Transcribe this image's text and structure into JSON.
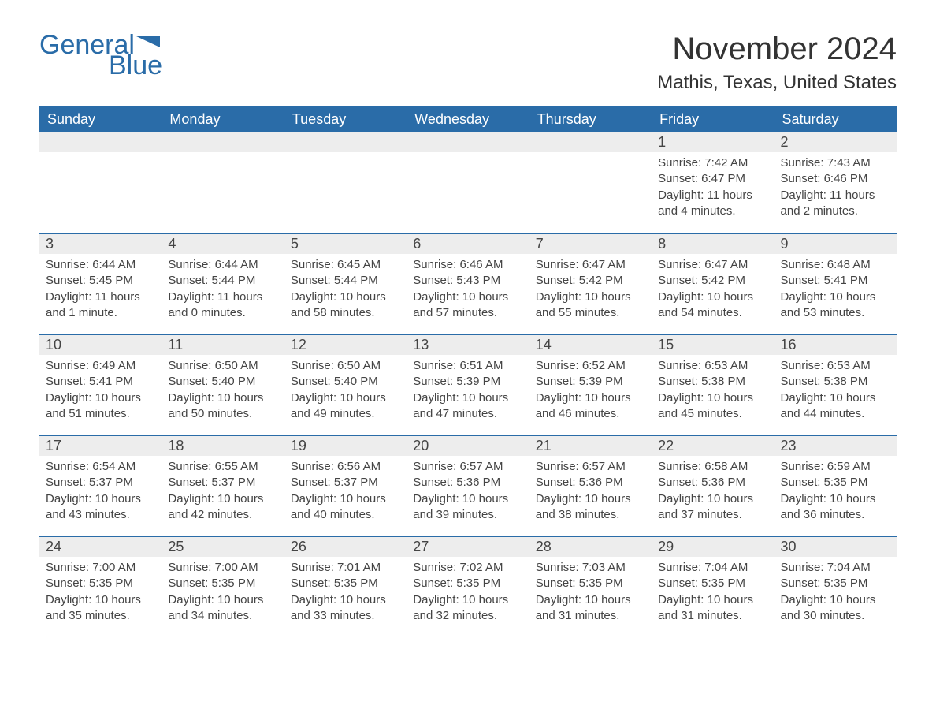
{
  "logo": {
    "part1": "General",
    "part2": "Blue"
  },
  "title": "November 2024",
  "location": "Mathis, Texas, United States",
  "colors": {
    "brand_blue": "#2a6ca8",
    "header_bg": "#2a6ca8",
    "header_text": "#ffffff",
    "daynum_bg": "#ededed",
    "text": "#333333",
    "body_text": "#444444",
    "background": "#ffffff"
  },
  "day_headers": [
    "Sunday",
    "Monday",
    "Tuesday",
    "Wednesday",
    "Thursday",
    "Friday",
    "Saturday"
  ],
  "weeks": [
    [
      null,
      null,
      null,
      null,
      null,
      {
        "n": "1",
        "sunrise": "Sunrise: 7:42 AM",
        "sunset": "Sunset: 6:47 PM",
        "daylight": "Daylight: 11 hours and 4 minutes."
      },
      {
        "n": "2",
        "sunrise": "Sunrise: 7:43 AM",
        "sunset": "Sunset: 6:46 PM",
        "daylight": "Daylight: 11 hours and 2 minutes."
      }
    ],
    [
      {
        "n": "3",
        "sunrise": "Sunrise: 6:44 AM",
        "sunset": "Sunset: 5:45 PM",
        "daylight": "Daylight: 11 hours and 1 minute."
      },
      {
        "n": "4",
        "sunrise": "Sunrise: 6:44 AM",
        "sunset": "Sunset: 5:44 PM",
        "daylight": "Daylight: 11 hours and 0 minutes."
      },
      {
        "n": "5",
        "sunrise": "Sunrise: 6:45 AM",
        "sunset": "Sunset: 5:44 PM",
        "daylight": "Daylight: 10 hours and 58 minutes."
      },
      {
        "n": "6",
        "sunrise": "Sunrise: 6:46 AM",
        "sunset": "Sunset: 5:43 PM",
        "daylight": "Daylight: 10 hours and 57 minutes."
      },
      {
        "n": "7",
        "sunrise": "Sunrise: 6:47 AM",
        "sunset": "Sunset: 5:42 PM",
        "daylight": "Daylight: 10 hours and 55 minutes."
      },
      {
        "n": "8",
        "sunrise": "Sunrise: 6:47 AM",
        "sunset": "Sunset: 5:42 PM",
        "daylight": "Daylight: 10 hours and 54 minutes."
      },
      {
        "n": "9",
        "sunrise": "Sunrise: 6:48 AM",
        "sunset": "Sunset: 5:41 PM",
        "daylight": "Daylight: 10 hours and 53 minutes."
      }
    ],
    [
      {
        "n": "10",
        "sunrise": "Sunrise: 6:49 AM",
        "sunset": "Sunset: 5:41 PM",
        "daylight": "Daylight: 10 hours and 51 minutes."
      },
      {
        "n": "11",
        "sunrise": "Sunrise: 6:50 AM",
        "sunset": "Sunset: 5:40 PM",
        "daylight": "Daylight: 10 hours and 50 minutes."
      },
      {
        "n": "12",
        "sunrise": "Sunrise: 6:50 AM",
        "sunset": "Sunset: 5:40 PM",
        "daylight": "Daylight: 10 hours and 49 minutes."
      },
      {
        "n": "13",
        "sunrise": "Sunrise: 6:51 AM",
        "sunset": "Sunset: 5:39 PM",
        "daylight": "Daylight: 10 hours and 47 minutes."
      },
      {
        "n": "14",
        "sunrise": "Sunrise: 6:52 AM",
        "sunset": "Sunset: 5:39 PM",
        "daylight": "Daylight: 10 hours and 46 minutes."
      },
      {
        "n": "15",
        "sunrise": "Sunrise: 6:53 AM",
        "sunset": "Sunset: 5:38 PM",
        "daylight": "Daylight: 10 hours and 45 minutes."
      },
      {
        "n": "16",
        "sunrise": "Sunrise: 6:53 AM",
        "sunset": "Sunset: 5:38 PM",
        "daylight": "Daylight: 10 hours and 44 minutes."
      }
    ],
    [
      {
        "n": "17",
        "sunrise": "Sunrise: 6:54 AM",
        "sunset": "Sunset: 5:37 PM",
        "daylight": "Daylight: 10 hours and 43 minutes."
      },
      {
        "n": "18",
        "sunrise": "Sunrise: 6:55 AM",
        "sunset": "Sunset: 5:37 PM",
        "daylight": "Daylight: 10 hours and 42 minutes."
      },
      {
        "n": "19",
        "sunrise": "Sunrise: 6:56 AM",
        "sunset": "Sunset: 5:37 PM",
        "daylight": "Daylight: 10 hours and 40 minutes."
      },
      {
        "n": "20",
        "sunrise": "Sunrise: 6:57 AM",
        "sunset": "Sunset: 5:36 PM",
        "daylight": "Daylight: 10 hours and 39 minutes."
      },
      {
        "n": "21",
        "sunrise": "Sunrise: 6:57 AM",
        "sunset": "Sunset: 5:36 PM",
        "daylight": "Daylight: 10 hours and 38 minutes."
      },
      {
        "n": "22",
        "sunrise": "Sunrise: 6:58 AM",
        "sunset": "Sunset: 5:36 PM",
        "daylight": "Daylight: 10 hours and 37 minutes."
      },
      {
        "n": "23",
        "sunrise": "Sunrise: 6:59 AM",
        "sunset": "Sunset: 5:35 PM",
        "daylight": "Daylight: 10 hours and 36 minutes."
      }
    ],
    [
      {
        "n": "24",
        "sunrise": "Sunrise: 7:00 AM",
        "sunset": "Sunset: 5:35 PM",
        "daylight": "Daylight: 10 hours and 35 minutes."
      },
      {
        "n": "25",
        "sunrise": "Sunrise: 7:00 AM",
        "sunset": "Sunset: 5:35 PM",
        "daylight": "Daylight: 10 hours and 34 minutes."
      },
      {
        "n": "26",
        "sunrise": "Sunrise: 7:01 AM",
        "sunset": "Sunset: 5:35 PM",
        "daylight": "Daylight: 10 hours and 33 minutes."
      },
      {
        "n": "27",
        "sunrise": "Sunrise: 7:02 AM",
        "sunset": "Sunset: 5:35 PM",
        "daylight": "Daylight: 10 hours and 32 minutes."
      },
      {
        "n": "28",
        "sunrise": "Sunrise: 7:03 AM",
        "sunset": "Sunset: 5:35 PM",
        "daylight": "Daylight: 10 hours and 31 minutes."
      },
      {
        "n": "29",
        "sunrise": "Sunrise: 7:04 AM",
        "sunset": "Sunset: 5:35 PM",
        "daylight": "Daylight: 10 hours and 31 minutes."
      },
      {
        "n": "30",
        "sunrise": "Sunrise: 7:04 AM",
        "sunset": "Sunset: 5:35 PM",
        "daylight": "Daylight: 10 hours and 30 minutes."
      }
    ]
  ]
}
